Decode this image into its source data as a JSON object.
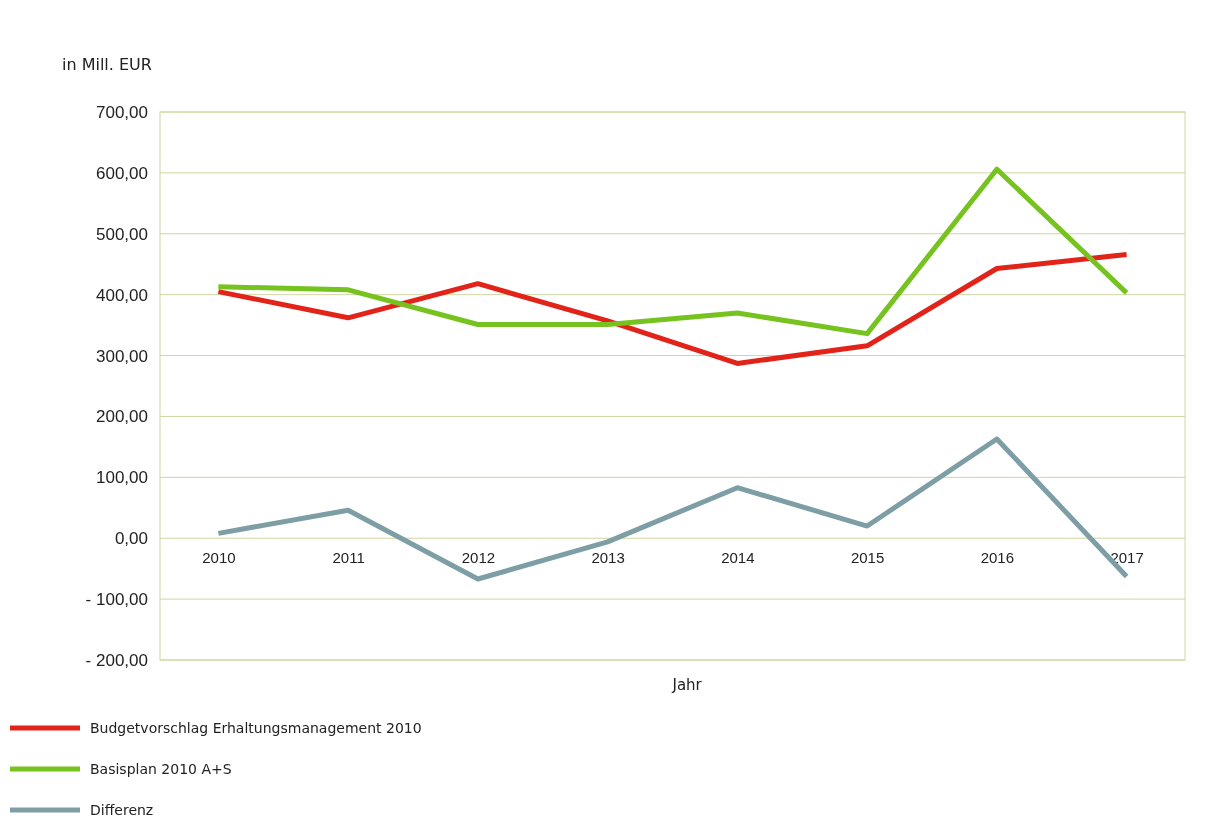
{
  "chart_data": {
    "type": "line",
    "ylabel": "in Mill. EUR",
    "xlabel": "Jahr",
    "categories": [
      "2010",
      "2011",
      "2012",
      "2013",
      "2014",
      "2015",
      "2016",
      "2017"
    ],
    "series": [
      {
        "name": "Budgetvorschlag Erhaltungsmanagement 2010",
        "color": "#e2231a",
        "values": [
          405,
          362,
          418,
          357,
          287,
          316,
          443,
          466
        ]
      },
      {
        "name": "Basisplan 2010 A+S",
        "color": "#76c21e",
        "values": [
          413,
          408,
          351,
          351,
          370,
          336,
          606,
          403
        ]
      },
      {
        "name": "Differenz",
        "color": "#7e9ea6",
        "values": [
          8,
          46,
          -67,
          -6,
          83,
          20,
          163,
          -63
        ]
      }
    ],
    "ylim": [
      -200,
      700
    ],
    "yticks": [
      {
        "value": -200,
        "label": "- 200,00"
      },
      {
        "value": -100,
        "label": "- 100,00"
      },
      {
        "value": 0,
        "label": "0,00"
      },
      {
        "value": 100,
        "label": "100,00"
      },
      {
        "value": 200,
        "label": "200,00"
      },
      {
        "value": 300,
        "label": "300,00"
      },
      {
        "value": 400,
        "label": "400,00"
      },
      {
        "value": 500,
        "label": "500,00"
      },
      {
        "value": 600,
        "label": "600,00"
      },
      {
        "value": 700,
        "label": "700,00"
      }
    ],
    "grid": "y",
    "legend": "bottom left",
    "marker": "none",
    "line_style": "solid"
  }
}
